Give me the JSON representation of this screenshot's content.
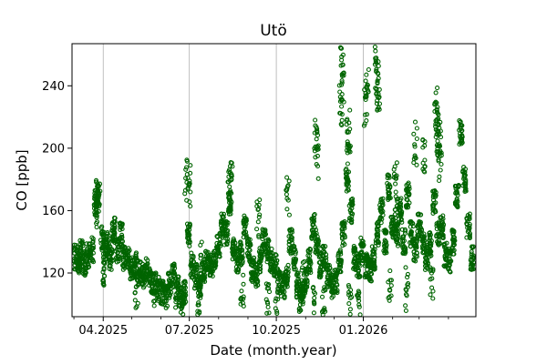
{
  "chart_data": {
    "type": "scatter",
    "title": "Utö",
    "xlabel": "Date (month.year)",
    "ylabel": "CO [ppb]",
    "x_tick_labels": [
      "04.2025",
      "07.2025",
      "10.2025",
      "01.2026"
    ],
    "x_ticks": [
      "2025-04-01",
      "2025-07-01",
      "2025-10-01",
      "2026-01-01"
    ],
    "y_ticks": [
      120,
      160,
      200,
      240
    ],
    "xlim": [
      "2025-02-27",
      "2026-04-30"
    ],
    "ylim": [
      92,
      267
    ],
    "grid": "vertical lines at major x ticks",
    "marker": "hollow circle",
    "color": "#006400",
    "series": [
      {
        "x": [
          "2025-03-03",
          "2025-03-06",
          "2025-03-09",
          "2025-03-12",
          "2025-03-16",
          "2025-03-20",
          "2025-03-24",
          "2025-03-27",
          "2025-03-31",
          "2025-04-03",
          "2025-04-06",
          "2025-04-09",
          "2025-04-12",
          "2025-04-16",
          "2025-04-20",
          "2025-04-23",
          "2025-04-27",
          "2025-05-01",
          "2025-05-05",
          "2025-05-09",
          "2025-05-13",
          "2025-05-17",
          "2025-05-21",
          "2025-05-25",
          "2025-05-29",
          "2025-06-02",
          "2025-06-06",
          "2025-06-10",
          "2025-06-14",
          "2025-06-18",
          "2025-06-22",
          "2025-06-26",
          "2025-06-30",
          "2025-07-04",
          "2025-07-08",
          "2025-07-12",
          "2025-07-16",
          "2025-07-20",
          "2025-07-24",
          "2025-07-28",
          "2025-08-01",
          "2025-08-05",
          "2025-08-09",
          "2025-08-13",
          "2025-08-17",
          "2025-08-21",
          "2025-08-25",
          "2025-08-29",
          "2025-09-02",
          "2025-09-06",
          "2025-09-10",
          "2025-09-14",
          "2025-09-18",
          "2025-09-22",
          "2025-09-26",
          "2025-09-30",
          "2025-10-04",
          "2025-10-08",
          "2025-10-12",
          "2025-10-16",
          "2025-10-20",
          "2025-10-24",
          "2025-10-28",
          "2025-11-01",
          "2025-11-05",
          "2025-11-09",
          "2025-11-13",
          "2025-11-17",
          "2025-11-21",
          "2025-11-25",
          "2025-11-29",
          "2025-12-03",
          "2025-12-07",
          "2025-12-11",
          "2025-12-15",
          "2025-12-19",
          "2025-12-23",
          "2025-12-27",
          "2025-12-31",
          "2026-01-04",
          "2026-01-08",
          "2026-01-12",
          "2026-01-16",
          "2026-01-20",
          "2026-01-24",
          "2026-01-28",
          "2026-02-01",
          "2026-02-05",
          "2026-02-09",
          "2026-02-13",
          "2026-02-17",
          "2026-02-21",
          "2026-02-25",
          "2026-03-01",
          "2026-03-05",
          "2026-03-09",
          "2026-03-13",
          "2026-03-17",
          "2026-03-21",
          "2026-03-25",
          "2026-03-29",
          "2026-04-02",
          "2026-04-06",
          "2026-04-10",
          "2026-04-14",
          "2026-04-18",
          "2026-04-22",
          "2026-04-26"
        ],
        "y": [
          130,
          128,
          133,
          126,
          131,
          135,
          165,
          170,
          142,
          134,
          138,
          130,
          148,
          135,
          145,
          130,
          128,
          122,
          125,
          120,
          118,
          122,
          115,
          112,
          110,
          108,
          105,
          112,
          118,
          110,
          105,
          108,
          145,
          125,
          118,
          112,
          122,
          128,
          125,
          130,
          138,
          150,
          145,
          165,
          135,
          128,
          132,
          150,
          135,
          122,
          118,
          128,
          140,
          135,
          128,
          125,
          115,
          112,
          118,
          140,
          130,
          112,
          108,
          115,
          128,
          150,
          140,
          125,
          130,
          118,
          112,
          115,
          128,
          145,
          180,
          160,
          130,
          125,
          135,
          125,
          122,
          130,
          145,
          160,
          140,
          175,
          150,
          145,
          160,
          140,
          170,
          145,
          135,
          150,
          140,
          130,
          138,
          165,
          145,
          150,
          132,
          128,
          140,
          170,
          210,
          180,
          150,
          130
        ]
      },
      {
        "x": [
          "2025-03-24",
          "2025-03-26",
          "2025-04-12",
          "2025-06-28",
          "2025-07-01",
          "2025-07-14",
          "2025-08-12",
          "2025-08-14",
          "2025-09-12",
          "2025-10-13",
          "2025-10-29",
          "2025-11-12",
          "2025-11-13",
          "2025-12-08",
          "2025-12-09",
          "2025-12-10",
          "2025-12-16",
          "2025-12-17",
          "2026-01-03",
          "2026-01-05",
          "2026-01-15",
          "2026-01-16",
          "2026-01-17",
          "2026-02-04",
          "2026-02-05",
          "2026-02-25",
          "2026-03-06",
          "2026-03-19",
          "2026-03-20",
          "2026-03-21",
          "2026-03-22",
          "2026-03-23"
        ],
        "y": [
          168,
          172,
          148,
          188,
          182,
          130,
          178,
          184,
          160,
          174,
          118,
          215,
          200,
          230,
          258,
          245,
          215,
          200,
          235,
          242,
          254,
          250,
          235,
          180,
          170,
          208,
          202,
          225,
          228,
          215,
          210,
          198
        ]
      },
      {
        "x": [
          "2025-04-02",
          "2025-05-06",
          "2025-05-26",
          "2025-06-18",
          "2025-06-23",
          "2025-07-10",
          "2025-08-26",
          "2025-09-22",
          "2025-10-01",
          "2025-10-26",
          "2025-11-10",
          "2025-11-20",
          "2025-12-18",
          "2025-12-27",
          "2026-01-29",
          "2026-02-16",
          "2026-03-14"
        ],
        "y": [
          124,
          114,
          100,
          98,
          96,
          104,
          110,
          106,
          98,
          108,
          104,
          106,
          108,
          112,
          114,
          116,
          120
        ]
      }
    ]
  }
}
